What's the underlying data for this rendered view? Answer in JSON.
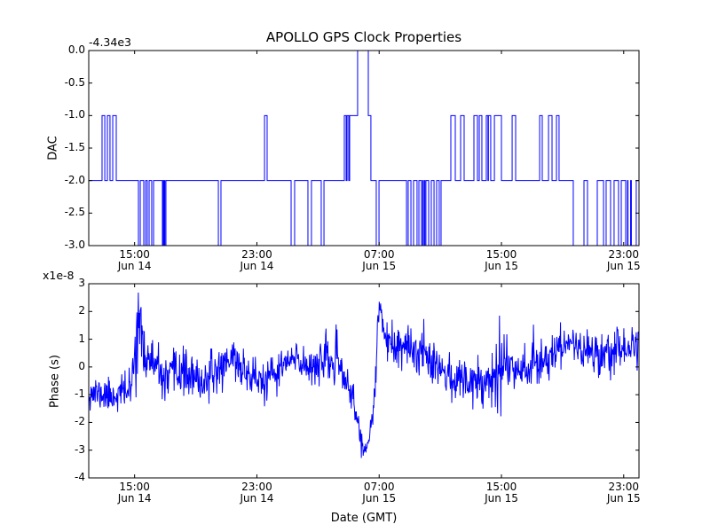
{
  "figure": {
    "background": "#ffffff",
    "line_color": "#0000ff",
    "axis_color": "#000000"
  },
  "chart_data": [
    {
      "type": "line",
      "series_style": "step",
      "title": "APOLLO GPS Clock Properties",
      "ylabel": "DAC",
      "y_offset_label": "-4.34e3",
      "ylim": [
        -3.0,
        0.0
      ],
      "x_hours_span": [
        0,
        36
      ],
      "x_epoch": "Jun 14 12:00 GMT",
      "grid": false,
      "yticks": [
        [
          "0.0",
          0
        ],
        [
          "-0.5",
          -0.5
        ],
        [
          "-1.0",
          -1.0
        ],
        [
          "-1.5",
          -1.5
        ],
        [
          "-2.0",
          -2.0
        ],
        [
          "-2.5",
          -2.5
        ],
        [
          "-3.0",
          -3.0
        ]
      ],
      "xticks": [
        [
          3,
          "15:00",
          "Jun 14"
        ],
        [
          11,
          "23:00",
          "Jun 14"
        ],
        [
          19,
          "07:00",
          "Jun 15"
        ],
        [
          27,
          "15:00",
          "Jun 15"
        ],
        [
          35,
          "23:00",
          "Jun 15"
        ]
      ],
      "step_points": [
        [
          0,
          -2
        ],
        [
          0.87,
          -1
        ],
        [
          1.05,
          -2
        ],
        [
          1.22,
          -1
        ],
        [
          1.39,
          -2
        ],
        [
          1.57,
          -1
        ],
        [
          1.8,
          -2
        ],
        [
          3.25,
          -3
        ],
        [
          3.37,
          -2
        ],
        [
          3.6,
          -3
        ],
        [
          3.72,
          -2
        ],
        [
          3.83,
          -3
        ],
        [
          3.95,
          -2
        ],
        [
          4.12,
          -3
        ],
        [
          4.24,
          -2
        ],
        [
          4.82,
          -3
        ],
        [
          4.88,
          -2
        ],
        [
          4.9,
          -3
        ],
        [
          4.96,
          -2
        ],
        [
          4.98,
          -3
        ],
        [
          5.05,
          -2
        ],
        [
          8.48,
          -3
        ],
        [
          8.65,
          -2
        ],
        [
          11.5,
          -1
        ],
        [
          11.67,
          -2
        ],
        [
          13.24,
          -3
        ],
        [
          13.47,
          -2
        ],
        [
          14.34,
          -3
        ],
        [
          14.57,
          -2
        ],
        [
          15.21,
          -3
        ],
        [
          15.39,
          -2
        ],
        [
          16.72,
          -1
        ],
        [
          16.84,
          -2
        ],
        [
          16.9,
          -1
        ],
        [
          17.01,
          -2
        ],
        [
          17.07,
          -1
        ],
        [
          17.59,
          0
        ],
        [
          18.29,
          -1
        ],
        [
          18.46,
          -2
        ],
        [
          18.81,
          -3
        ],
        [
          18.99,
          -2
        ],
        [
          20.79,
          -3
        ],
        [
          20.9,
          -2
        ],
        [
          21.08,
          -3
        ],
        [
          21.25,
          -2
        ],
        [
          21.48,
          -3
        ],
        [
          21.6,
          -2
        ],
        [
          21.77,
          -3
        ],
        [
          21.85,
          -2
        ],
        [
          21.88,
          -3
        ],
        [
          21.96,
          -2
        ],
        [
          21.99,
          -3
        ],
        [
          22.06,
          -2
        ],
        [
          22.24,
          -3
        ],
        [
          22.41,
          -2
        ],
        [
          22.59,
          -3
        ],
        [
          22.76,
          -2
        ],
        [
          22.93,
          -3
        ],
        [
          23.05,
          -2
        ],
        [
          23.69,
          -1
        ],
        [
          23.98,
          -2
        ],
        [
          24.33,
          -1
        ],
        [
          24.56,
          -2
        ],
        [
          25.2,
          -1
        ],
        [
          25.43,
          -2
        ],
        [
          25.55,
          -1
        ],
        [
          25.72,
          -2
        ],
        [
          26.01,
          -1
        ],
        [
          26.12,
          -2
        ],
        [
          26.15,
          -1
        ],
        [
          26.3,
          -2
        ],
        [
          26.54,
          -1
        ],
        [
          27.0,
          -2
        ],
        [
          27.7,
          -1
        ],
        [
          27.93,
          -2
        ],
        [
          29.5,
          -1
        ],
        [
          29.67,
          -2
        ],
        [
          30.08,
          -1
        ],
        [
          30.31,
          -2
        ],
        [
          30.6,
          -1
        ],
        [
          30.77,
          -2
        ],
        [
          31.7,
          -3
        ],
        [
          32.4,
          -2
        ],
        [
          32.63,
          -3
        ],
        [
          33.27,
          -2
        ],
        [
          33.68,
          -3
        ],
        [
          33.85,
          -2
        ],
        [
          34.14,
          -3
        ],
        [
          34.37,
          -2
        ],
        [
          34.66,
          -3
        ],
        [
          34.84,
          -2
        ],
        [
          35.13,
          -3
        ],
        [
          35.25,
          -2
        ],
        [
          35.28,
          -3
        ],
        [
          35.45,
          -2
        ],
        [
          35.5,
          -3
        ],
        [
          35.82,
          -2
        ]
      ]
    },
    {
      "type": "line",
      "series_style": "noisy",
      "ylabel": "Phase (s)",
      "xlabel": "Date (GMT)",
      "y_scale_label": "x1e-8",
      "ylim": [
        -4,
        3
      ],
      "x_hours_span": [
        0,
        36
      ],
      "grid": false,
      "yticks": [
        [
          "3",
          3
        ],
        [
          "2",
          2
        ],
        [
          "1",
          1
        ],
        [
          "0",
          0
        ],
        [
          "-1",
          -1
        ],
        [
          "-2",
          -2
        ],
        [
          "-3",
          -3
        ],
        [
          "-4",
          -4
        ]
      ],
      "xticks": [
        [
          3,
          "15:00",
          "Jun 14"
        ],
        [
          11,
          "23:00",
          "Jun 14"
        ],
        [
          19,
          "07:00",
          "Jun 15"
        ],
        [
          27,
          "15:00",
          "Jun 15"
        ],
        [
          35,
          "23:00",
          "Jun 15"
        ]
      ],
      "noise_series": {
        "seed": 11,
        "n": 1200,
        "clip": [
          -3.28,
          2.7
        ],
        "envelope": [
          [
            0,
            -0.9,
            0.3
          ],
          [
            1.5,
            -1.05,
            0.3
          ],
          [
            2.8,
            -0.8,
            0.35
          ],
          [
            3.1,
            1.2,
            0.8
          ],
          [
            3.3,
            1.8,
            0.6
          ],
          [
            3.5,
            0.6,
            0.5
          ],
          [
            4.2,
            0.1,
            0.45
          ],
          [
            5.0,
            -0.55,
            0.35
          ],
          [
            6.0,
            -0.1,
            0.45
          ],
          [
            6.5,
            -0.3,
            0.4
          ],
          [
            7.2,
            -0.6,
            0.35
          ],
          [
            8.0,
            -0.35,
            0.35
          ],
          [
            9.0,
            0.2,
            0.4
          ],
          [
            9.4,
            0.45,
            0.35
          ],
          [
            10.0,
            -0.1,
            0.35
          ],
          [
            10.8,
            -0.35,
            0.35
          ],
          [
            11.5,
            -0.6,
            0.4
          ],
          [
            12.0,
            -0.4,
            0.35
          ],
          [
            12.8,
            0.1,
            0.35
          ],
          [
            13.5,
            0.25,
            0.35
          ],
          [
            14.3,
            0.05,
            0.35
          ],
          [
            15.2,
            0.2,
            0.4
          ],
          [
            16.2,
            0.15,
            0.4
          ],
          [
            16.8,
            -0.4,
            0.35
          ],
          [
            17.3,
            -1.2,
            0.3
          ],
          [
            17.7,
            -2.3,
            0.25
          ],
          [
            18.0,
            -3.0,
            0.15
          ],
          [
            18.2,
            -2.8,
            0.2
          ],
          [
            18.5,
            -2.2,
            0.25
          ],
          [
            18.75,
            -0.8,
            0.3
          ],
          [
            18.95,
            1.9,
            0.3
          ],
          [
            19.1,
            2.1,
            0.25
          ],
          [
            19.35,
            1.3,
            0.3
          ],
          [
            19.7,
            0.6,
            0.35
          ],
          [
            20.3,
            0.7,
            0.4
          ],
          [
            21.0,
            0.55,
            0.4
          ],
          [
            22.0,
            0.6,
            0.45
          ],
          [
            22.8,
            0.2,
            0.4
          ],
          [
            23.3,
            -0.25,
            0.35
          ],
          [
            24.0,
            -0.5,
            0.35
          ],
          [
            25.0,
            -0.45,
            0.4
          ],
          [
            26.0,
            -0.45,
            0.5
          ],
          [
            26.8,
            -0.1,
            0.65
          ],
          [
            27.3,
            0.1,
            0.55
          ],
          [
            28.0,
            0.0,
            0.4
          ],
          [
            29.0,
            0.1,
            0.45
          ],
          [
            30.0,
            0.3,
            0.4
          ],
          [
            31.0,
            0.75,
            0.4
          ],
          [
            31.6,
            0.95,
            0.35
          ],
          [
            32.3,
            0.6,
            0.4
          ],
          [
            33.0,
            0.5,
            0.4
          ],
          [
            34.0,
            0.55,
            0.45
          ],
          [
            35.0,
            0.65,
            0.45
          ],
          [
            36.0,
            0.8,
            0.4
          ]
        ],
        "forced_points": [
          [
            3.24,
            2.68
          ],
          [
            3.3,
            1.95
          ],
          [
            17.95,
            -3.2
          ],
          [
            18.02,
            -3.05
          ],
          [
            19.0,
            2.35
          ],
          [
            26.88,
            1.85
          ],
          [
            26.96,
            -1.78
          ]
        ]
      }
    }
  ]
}
